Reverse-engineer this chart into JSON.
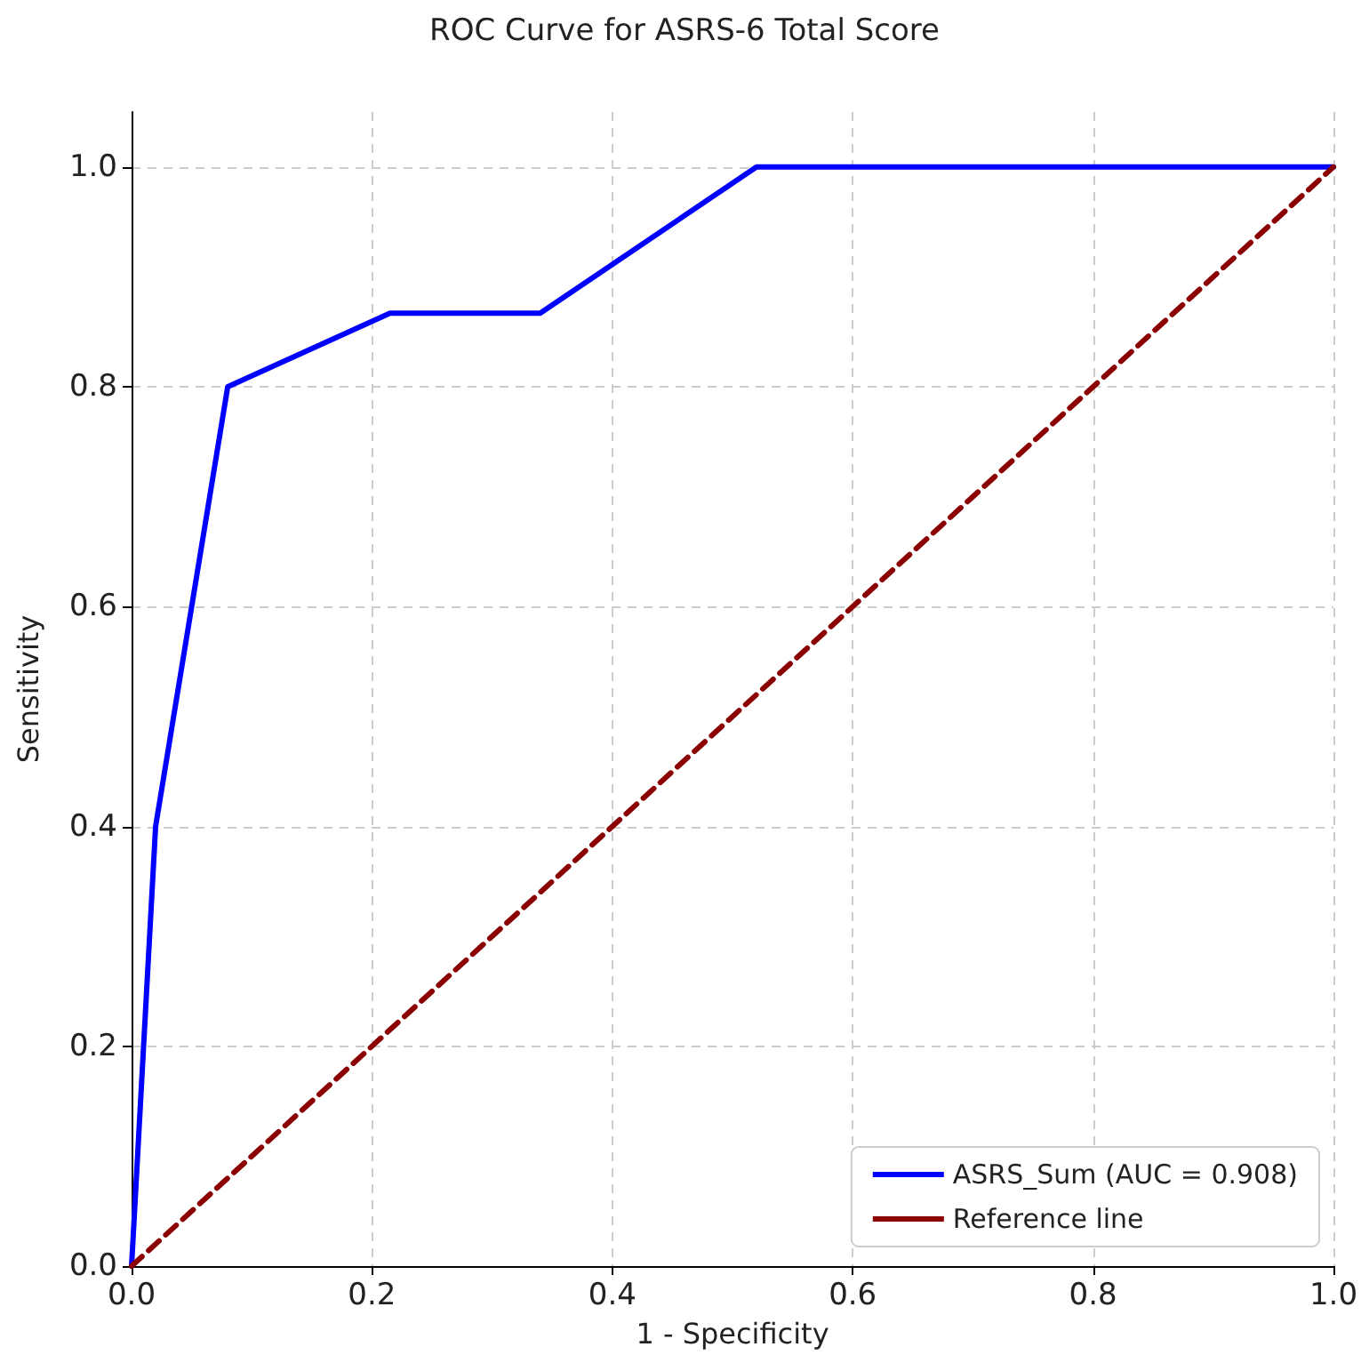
{
  "chart_data": {
    "type": "line",
    "title": "ROC Curve for ASRS-6 Total Score",
    "xlabel": "1 - Specificity",
    "ylabel": "Sensitivity",
    "x": [
      0,
      0.02,
      0.08,
      0.215,
      0.34,
      0.52,
      1.0
    ],
    "series": [
      {
        "name": "ASRS_Sum (AUC = 0.908)",
        "color": "#0000ff",
        "values": [
          0,
          0.4,
          0.8,
          0.867,
          0.867,
          1.0,
          1.0
        ],
        "line_style": "solid"
      },
      {
        "name": "Reference line",
        "color": "#8b0000",
        "x": [
          0,
          1
        ],
        "values": [
          0,
          1
        ],
        "line_style": "dashed"
      }
    ],
    "xlim": [
      0,
      1
    ],
    "ylim": [
      0,
      1.05
    ],
    "xticks": [
      {
        "value": 0,
        "label": "0.0"
      },
      {
        "value": 0.2,
        "label": "0.2"
      },
      {
        "value": 0.4,
        "label": "0.4"
      },
      {
        "value": 0.6,
        "label": "0.6"
      },
      {
        "value": 0.8,
        "label": "0.8"
      },
      {
        "value": 1,
        "label": "1.0"
      }
    ],
    "yticks": [
      {
        "value": 0,
        "label": "0.0"
      },
      {
        "value": 0.2,
        "label": "0.2"
      },
      {
        "value": 0.4,
        "label": "0.4"
      },
      {
        "value": 0.6,
        "label": "0.6"
      },
      {
        "value": 0.8,
        "label": "0.8"
      },
      {
        "value": 1,
        "label": "1.0"
      }
    ],
    "grid": true,
    "legend": "bottom right",
    "marker": "none"
  }
}
